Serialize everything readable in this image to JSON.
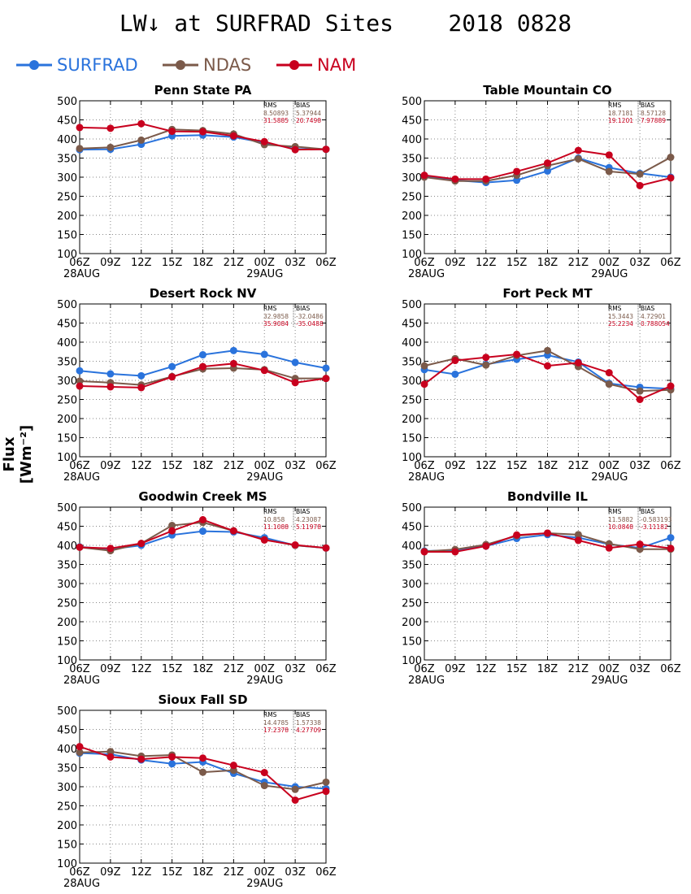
{
  "header": {
    "title": "LW↓ at SURFRAD Sites    2018 0828",
    "ylabel": "Flux [Wm⁻²]"
  },
  "legend": [
    {
      "name": "SURFRAD",
      "color": "#2a73dc"
    },
    {
      "name": "NDAS",
      "color": "#7b5a4a"
    },
    {
      "name": "NAM",
      "color": "#c8001e"
    }
  ],
  "chart_data": [
    {
      "type": "line",
      "title": "Penn State PA",
      "x": [
        "06Z",
        "09Z",
        "12Z",
        "15Z",
        "18Z",
        "21Z",
        "00Z",
        "03Z",
        "06Z"
      ],
      "date_labels": [
        "28AUG",
        "29AUG"
      ],
      "ylim": [
        100,
        500
      ],
      "yticks": [
        100,
        150,
        200,
        250,
        300,
        350,
        400,
        450,
        500
      ],
      "grid": true,
      "stats": {
        "header": [
          "RMS",
          "BIAS"
        ],
        "rows": [
          [
            "8.50893",
            "5.37944"
          ],
          [
            "31.5885",
            "20.7498"
          ]
        ]
      },
      "series": [
        {
          "name": "SURFRAD",
          "values": [
            372,
            373,
            386,
            408,
            410,
            405,
            390,
            374,
            373
          ]
        },
        {
          "name": "NDAS",
          "values": [
            375,
            378,
            397,
            425,
            422,
            413,
            385,
            380,
            373
          ]
        },
        {
          "name": "NAM",
          "values": [
            430,
            428,
            440,
            420,
            419,
            408,
            393,
            372,
            373
          ]
        }
      ]
    },
    {
      "type": "line",
      "title": "Table Mountain CO",
      "x": [
        "06Z",
        "09Z",
        "12Z",
        "15Z",
        "18Z",
        "21Z",
        "00Z",
        "03Z",
        "06Z"
      ],
      "date_labels": [
        "28AUG",
        "29AUG"
      ],
      "ylim": [
        100,
        500
      ],
      "yticks": [
        100,
        150,
        200,
        250,
        300,
        350,
        400,
        450,
        500
      ],
      "grid": true,
      "stats": {
        "header": [
          "RMS",
          "BIAS"
        ],
        "rows": [
          [
            "18.7181",
            "8.57128"
          ],
          [
            "19.1201",
            "7.97889"
          ]
        ]
      },
      "series": [
        {
          "name": "SURFRAD",
          "values": [
            303,
            292,
            286,
            292,
            316,
            350,
            325,
            310,
            300
          ]
        },
        {
          "name": "NDAS",
          "values": [
            300,
            290,
            290,
            305,
            330,
            348,
            315,
            308,
            352
          ]
        },
        {
          "name": "NAM",
          "values": [
            305,
            295,
            295,
            315,
            337,
            370,
            358,
            278,
            298
          ]
        }
      ]
    },
    {
      "type": "line",
      "title": "Desert Rock NV",
      "x": [
        "06Z",
        "09Z",
        "12Z",
        "15Z",
        "18Z",
        "21Z",
        "00Z",
        "03Z",
        "06Z"
      ],
      "date_labels": [
        "28AUG",
        "29AUG"
      ],
      "ylim": [
        100,
        500
      ],
      "yticks": [
        100,
        150,
        200,
        250,
        300,
        350,
        400,
        450,
        500
      ],
      "grid": true,
      "stats": {
        "header": [
          "RMS",
          "BIAS"
        ],
        "rows": [
          [
            "32.9858",
            "-32.0486"
          ],
          [
            "35.9084",
            "-35.0488"
          ]
        ]
      },
      "series": [
        {
          "name": "SURFRAD",
          "values": [
            325,
            317,
            312,
            336,
            367,
            378,
            368,
            347,
            332
          ]
        },
        {
          "name": "NDAS",
          "values": [
            298,
            294,
            288,
            310,
            330,
            332,
            328,
            305,
            305
          ]
        },
        {
          "name": "NAM",
          "values": [
            285,
            283,
            281,
            309,
            336,
            344,
            326,
            294,
            305
          ]
        }
      ]
    },
    {
      "type": "line",
      "title": "Fort Peck MT",
      "x": [
        "06Z",
        "09Z",
        "12Z",
        "15Z",
        "18Z",
        "21Z",
        "00Z",
        "03Z",
        "06Z"
      ],
      "date_labels": [
        "28AUG",
        "29AUG"
      ],
      "ylim": [
        100,
        500
      ],
      "yticks": [
        100,
        150,
        200,
        250,
        300,
        350,
        400,
        450,
        500
      ],
      "grid": true,
      "stats": {
        "header": [
          "RMS",
          "BIAS"
        ],
        "rows": [
          [
            "15.3443",
            "4.72901"
          ],
          [
            "25.2234",
            "0.788054"
          ]
        ]
      },
      "series": [
        {
          "name": "SURFRAD",
          "values": [
            328,
            316,
            342,
            355,
            366,
            348,
            292,
            282,
            278
          ]
        },
        {
          "name": "NDAS",
          "values": [
            338,
            357,
            340,
            365,
            378,
            336,
            290,
            272,
            275
          ]
        },
        {
          "name": "NAM",
          "values": [
            290,
            352,
            360,
            368,
            338,
            346,
            320,
            250,
            285
          ]
        }
      ]
    },
    {
      "type": "line",
      "title": "Goodwin Creek MS",
      "x": [
        "06Z",
        "09Z",
        "12Z",
        "15Z",
        "18Z",
        "21Z",
        "00Z",
        "03Z",
        "06Z"
      ],
      "date_labels": [
        "28AUG",
        "29AUG"
      ],
      "ylim": [
        100,
        500
      ],
      "yticks": [
        100,
        150,
        200,
        250,
        300,
        350,
        400,
        450,
        500
      ],
      "grid": true,
      "stats": {
        "header": [
          "RMS",
          "BIAS"
        ],
        "rows": [
          [
            "10.858",
            "4.23087"
          ],
          [
            "11.1088",
            "5.11978"
          ]
        ]
      },
      "series": [
        {
          "name": "SURFRAD",
          "values": [
            396,
            390,
            400,
            427,
            437,
            435,
            420,
            400,
            393
          ]
        },
        {
          "name": "NDAS",
          "values": [
            395,
            386,
            405,
            452,
            460,
            438,
            415,
            400,
            393
          ]
        },
        {
          "name": "NAM",
          "values": [
            395,
            392,
            405,
            438,
            467,
            438,
            414,
            401,
            393
          ]
        }
      ]
    },
    {
      "type": "line",
      "title": "Bondville IL",
      "x": [
        "06Z",
        "09Z",
        "12Z",
        "15Z",
        "18Z",
        "21Z",
        "00Z",
        "03Z",
        "06Z"
      ],
      "date_labels": [
        "28AUG",
        "29AUG"
      ],
      "ylim": [
        100,
        500
      ],
      "yticks": [
        100,
        150,
        200,
        250,
        300,
        350,
        400,
        450,
        500
      ],
      "grid": true,
      "stats": {
        "header": [
          "RMS",
          "BIAS"
        ],
        "rows": [
          [
            "11.5882",
            "-0.583193"
          ],
          [
            "10.0848",
            "-3.11182"
          ]
        ]
      },
      "series": [
        {
          "name": "SURFRAD",
          "values": [
            385,
            387,
            398,
            418,
            428,
            420,
            403,
            393,
            420
          ]
        },
        {
          "name": "NDAS",
          "values": [
            384,
            389,
            402,
            425,
            432,
            428,
            404,
            390,
            390
          ]
        },
        {
          "name": "NAM",
          "values": [
            383,
            383,
            398,
            427,
            432,
            413,
            393,
            403,
            392
          ]
        }
      ]
    },
    {
      "type": "line",
      "title": "Sioux Fall SD",
      "x": [
        "06Z",
        "09Z",
        "12Z",
        "15Z",
        "18Z",
        "21Z",
        "00Z",
        "03Z",
        "06Z"
      ],
      "date_labels": [
        "28AUG",
        "29AUG"
      ],
      "ylim": [
        100,
        500
      ],
      "yticks": [
        100,
        150,
        200,
        250,
        300,
        350,
        400,
        450,
        500
      ],
      "grid": true,
      "stats": {
        "header": [
          "RMS",
          "BIAS"
        ],
        "rows": [
          [
            "14.4785",
            "1.57338"
          ],
          [
            "17.2378",
            "4.27709"
          ]
        ]
      },
      "series": [
        {
          "name": "SURFRAD",
          "values": [
            388,
            385,
            370,
            360,
            365,
            335,
            312,
            300,
            295
          ]
        },
        {
          "name": "NDAS",
          "values": [
            390,
            392,
            380,
            383,
            338,
            343,
            303,
            293,
            312
          ]
        },
        {
          "name": "NAM",
          "values": [
            405,
            378,
            372,
            378,
            375,
            356,
            337,
            265,
            288
          ]
        }
      ]
    }
  ]
}
